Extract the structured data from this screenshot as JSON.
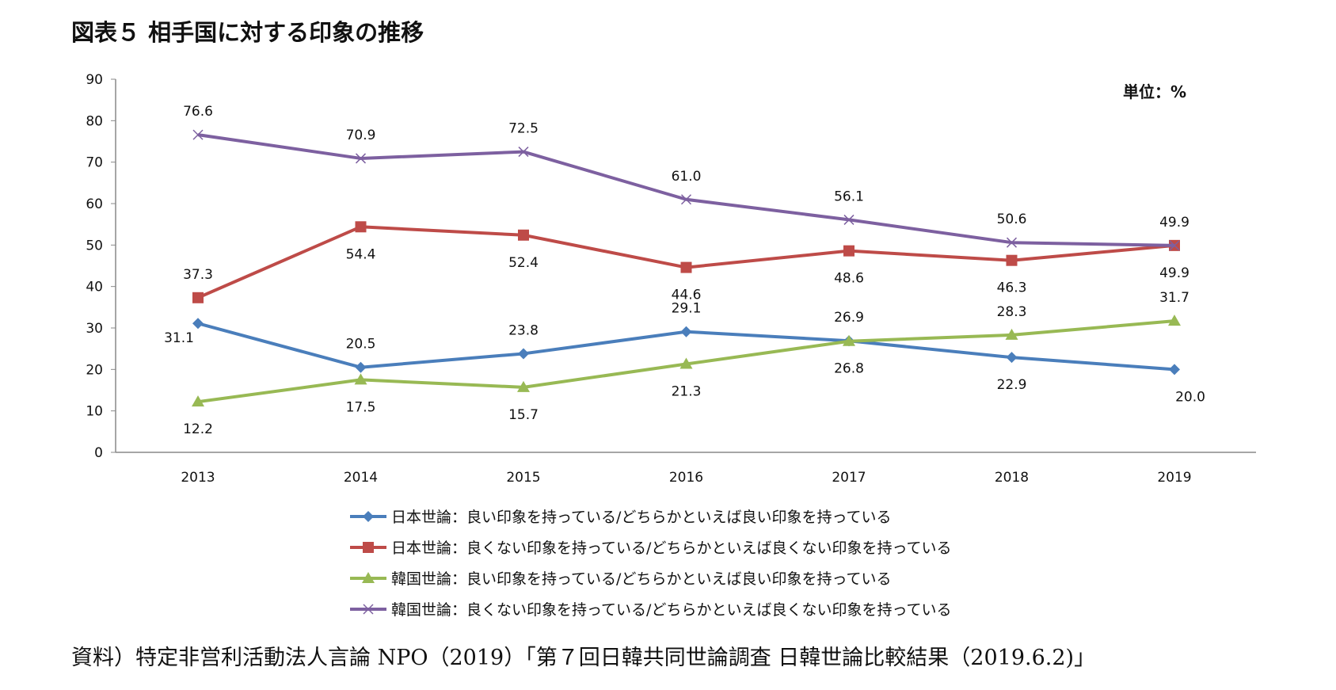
{
  "title": "図表５ 相手国に対する印象の推移",
  "source": "資料）特定非営利活動法人言論 NPO（2019）「第７回日韓共同世論調査 日韓世論比較結果（2019.6.2)」",
  "chart_data": {
    "type": "line",
    "unit_label": "単位：%",
    "categories": [
      "2013",
      "2014",
      "2015",
      "2016",
      "2017",
      "2018",
      "2019"
    ],
    "ylim": [
      0,
      90
    ],
    "yticks": [
      0,
      10,
      20,
      30,
      40,
      50,
      60,
      70,
      80,
      90
    ],
    "grid": false,
    "legend_placement": "bottom",
    "series": [
      {
        "name": "日本世論：良い印象を持っている/どちらかといえば良い印象を持っている",
        "color": "#4a7ebb",
        "marker": "diamond",
        "values": [
          31.1,
          20.5,
          23.8,
          29.1,
          26.9,
          22.9,
          20.0
        ]
      },
      {
        "name": "日本世論：良くない印象を持っている/どちらかといえば良くない印象を持っている",
        "color": "#be4b48",
        "marker": "square",
        "values": [
          37.3,
          54.4,
          52.4,
          44.6,
          48.6,
          46.3,
          49.9
        ]
      },
      {
        "name": "韓国世論：良い印象を持っている/どちらかといえば良い印象を持っている",
        "color": "#98b954",
        "marker": "triangle",
        "values": [
          12.2,
          17.5,
          15.7,
          21.3,
          26.8,
          28.3,
          31.7
        ]
      },
      {
        "name": "韓国世論：良くない印象を持っている/どちらかといえば良くない印象を持っている",
        "color": "#7d60a0",
        "marker": "x",
        "values": [
          76.6,
          70.9,
          72.5,
          61.0,
          56.1,
          50.6,
          49.9
        ]
      }
    ]
  }
}
